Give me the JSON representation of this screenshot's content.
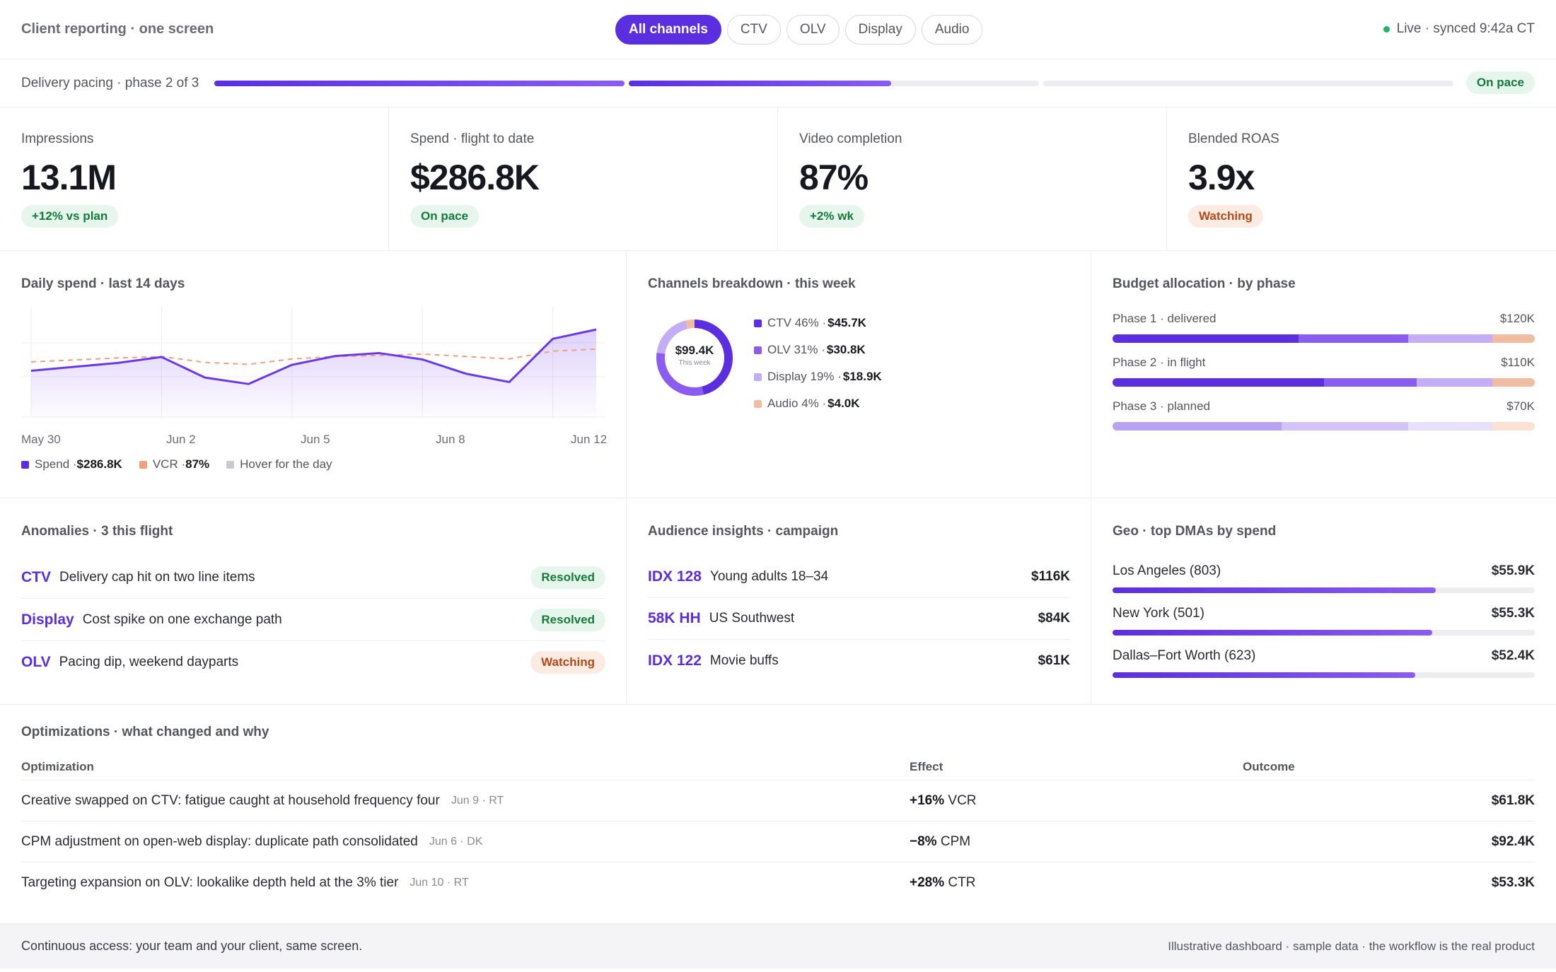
{
  "header": {
    "title": "Client reporting · one screen",
    "tabs": [
      "All channels",
      "CTV",
      "OLV",
      "Display",
      "Audio"
    ],
    "active_tab": "All channels",
    "live_status": "Live · synced 9:42a CT"
  },
  "pacing": {
    "label": "Delivery pacing · phase 2 of 3",
    "phases_progress": [
      1.0,
      0.64,
      0.0
    ],
    "status": "On pace"
  },
  "kpis": [
    {
      "label": "Impressions",
      "value": "13.1M",
      "badge": "+12% vs plan",
      "tone": "good"
    },
    {
      "label": "Spend · flight to date",
      "value": "$286.8K",
      "badge": "On pace",
      "tone": "good"
    },
    {
      "label": "Video completion",
      "value": "87%",
      "badge": "+2% wk",
      "tone": "good"
    },
    {
      "label": "Blended ROAS",
      "value": "3.9x",
      "badge": "Watching",
      "tone": "warn"
    }
  ],
  "daily_spend": {
    "title": "Daily spend · last 14 days",
    "x_ticks": [
      "May 30",
      "Jun 2",
      "Jun 5",
      "Jun 8",
      "Jun 12"
    ],
    "legend": {
      "spend_label": "Spend · ",
      "spend_value": "$286.8K",
      "vcr_label": "VCR · ",
      "vcr_value": "87%",
      "hover_label": "Hover for the day"
    }
  },
  "chart_data": {
    "type": "line",
    "title": "Daily spend · last 14 days",
    "x": [
      "May 30",
      "May 31",
      "Jun 1",
      "Jun 2",
      "Jun 3",
      "Jun 4",
      "Jun 5",
      "Jun 6",
      "Jun 7",
      "Jun 8",
      "Jun 9",
      "Jun 10",
      "Jun 11",
      "Jun 12"
    ],
    "series": [
      {
        "name": "Spend",
        "values": [
          20.0,
          20.8,
          21.6,
          22.8,
          18.6,
          17.3,
          21.2,
          23.0,
          23.6,
          22.3,
          19.4,
          17.7,
          26.5,
          28.4
        ]
      },
      {
        "name": "VCR",
        "values": [
          21.8,
          22.2,
          22.6,
          22.9,
          21.7,
          21.3,
          22.4,
          22.9,
          23.1,
          23.4,
          22.9,
          22.4,
          24.0,
          24.4
        ]
      }
    ],
    "ylim": [
      12,
      30
    ],
    "grid": true
  },
  "channels": {
    "title": "Channels breakdown · this week",
    "center_value": "$99.4K",
    "center_label": "This week",
    "items": [
      {
        "label": "CTV 46% · ",
        "value": "$45.7K",
        "share": 46,
        "color": "#5b2ee0"
      },
      {
        "label": "OLV 31% · ",
        "value": "$30.8K",
        "share": 31,
        "color": "#8a5cf0"
      },
      {
        "label": "Display 19% · ",
        "value": "$18.9K",
        "share": 19,
        "color": "#c3aef5"
      },
      {
        "label": "Audio 4% · ",
        "value": "$4.0K",
        "share": 4,
        "color": "#f0bda3"
      }
    ]
  },
  "budget": {
    "title": "Budget allocation · by phase",
    "phases": [
      {
        "label": "Phase 1 · delivered",
        "amount": "$120K",
        "split": [
          44,
          26,
          20,
          10
        ],
        "faded": false
      },
      {
        "label": "Phase 2 · in flight",
        "amount": "$110K",
        "split": [
          50,
          22,
          18,
          10
        ],
        "faded": false
      },
      {
        "label": "Phase 3 · planned",
        "amount": "$70K",
        "split": [
          40,
          30,
          20,
          10
        ],
        "faded": true
      }
    ]
  },
  "anomalies": {
    "title": "Anomalies · 3 this flight",
    "items": [
      {
        "channel": "CTV",
        "text": "Delivery cap hit on two line items",
        "status": "Resolved",
        "tone": "good"
      },
      {
        "channel": "Display",
        "text": "Cost spike on one exchange path",
        "status": "Resolved",
        "tone": "good"
      },
      {
        "channel": "OLV",
        "text": "Pacing dip, weekend dayparts",
        "status": "Watching",
        "tone": "warn"
      }
    ]
  },
  "audience": {
    "title": "Audience insights · campaign",
    "items": [
      {
        "index": "IDX 128",
        "text": "Young adults 18–34",
        "value": "$116K"
      },
      {
        "index": "58K HH",
        "text": "US Southwest",
        "value": "$84K"
      },
      {
        "index": "IDX 122",
        "text": "Movie buffs",
        "value": "$61K"
      }
    ]
  },
  "geo": {
    "title": "Geo · top DMAs by spend",
    "items": [
      {
        "name": "Los Angeles (803)",
        "value": "$55.9K",
        "share": 0.765
      },
      {
        "name": "New York (501)",
        "value": "$55.3K",
        "share": 0.757
      },
      {
        "name": "Dallas–Fort Worth (623)",
        "value": "$52.4K",
        "share": 0.717
      }
    ]
  },
  "optimizations": {
    "title": "Optimizations · what changed and why",
    "headers": [
      "Optimization",
      "Effect",
      "Outcome"
    ],
    "rows": [
      {
        "text": "Creative swapped on CTV: fatigue caught at household frequency four",
        "meta": "Jun 9 · RT",
        "effect_value": "+16%",
        "effect_metric": " VCR",
        "outcome": "$61.8K"
      },
      {
        "text": "CPM adjustment on open-web display: duplicate path consolidated",
        "meta": "Jun 6 · DK",
        "effect_value": "−8%",
        "effect_metric": " CPM",
        "outcome": "$92.4K"
      },
      {
        "text": "Targeting expansion on OLV: lookalike depth held at the 3% tier",
        "meta": "Jun 10 · RT",
        "effect_value": "+28%",
        "effect_metric": " CTR",
        "outcome": "$53.3K"
      }
    ]
  },
  "footer": {
    "left": "Continuous access: your team and your client, same screen.",
    "right": "Illustrative dashboard · sample data · the workflow is the real product"
  }
}
